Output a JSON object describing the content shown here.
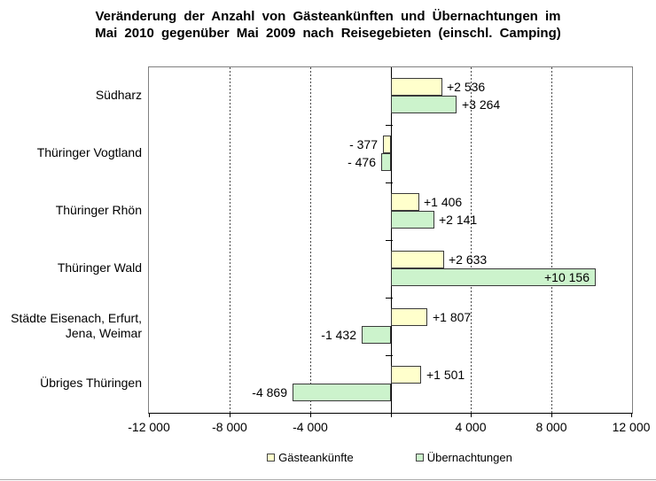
{
  "title": "Veränderung der Anzahl von Gästeankünften und Übernachtungen im\nMai 2010 gegenüber Mai 2009 nach Reisegebieten (einschl. Camping)",
  "chart_data": {
    "type": "bar",
    "orientation": "horizontal",
    "title": "Veränderung der Anzahl von Gästeankünften und Übernachtungen im Mai 2010 gegenüber Mai 2009 nach Reisegebieten (einschl. Camping)",
    "categories": [
      "Südharz",
      "Thüringer Vogtland",
      "Thüringer Rhön",
      "Thüringer Wald",
      "Städte Eisenach, Erfurt,\nJena, Weimar",
      "Übriges Thüringen"
    ],
    "series": [
      {
        "name": "Gästeankünfte",
        "color": "#FFFFCC",
        "values": [
          2536,
          -377,
          1406,
          2633,
          1807,
          1501
        ],
        "value_labels": [
          "+2 536",
          "- 377",
          "+1 406",
          "+2 633",
          "+1 807",
          "+1 501"
        ]
      },
      {
        "name": "Übernachtungen",
        "color": "#CCF3CC",
        "values": [
          3264,
          -476,
          2141,
          10156,
          -1432,
          -4869
        ],
        "value_labels": [
          "+3 264",
          "- 476",
          "+2 141",
          "+10 156",
          "-1 432",
          "-4 869"
        ]
      }
    ],
    "xlim": [
      -12000,
      12000
    ],
    "xticks": [
      {
        "value": -12000,
        "label": "-12 000"
      },
      {
        "value": -8000,
        "label": "-8 000"
      },
      {
        "value": -4000,
        "label": "-4 000"
      },
      {
        "value": 0,
        "label": ""
      },
      {
        "value": 4000,
        "label": "4 000"
      },
      {
        "value": 8000,
        "label": "8 000"
      },
      {
        "value": 12000,
        "label": "12 000"
      }
    ],
    "gridline_values": [
      -8000,
      -4000,
      4000,
      8000
    ],
    "grid": "dashed-vertical",
    "legend_position": "bottom",
    "bar_border_color": "#3a3a3a",
    "plot_border_color": "#808080",
    "axis_color": "#000000"
  }
}
